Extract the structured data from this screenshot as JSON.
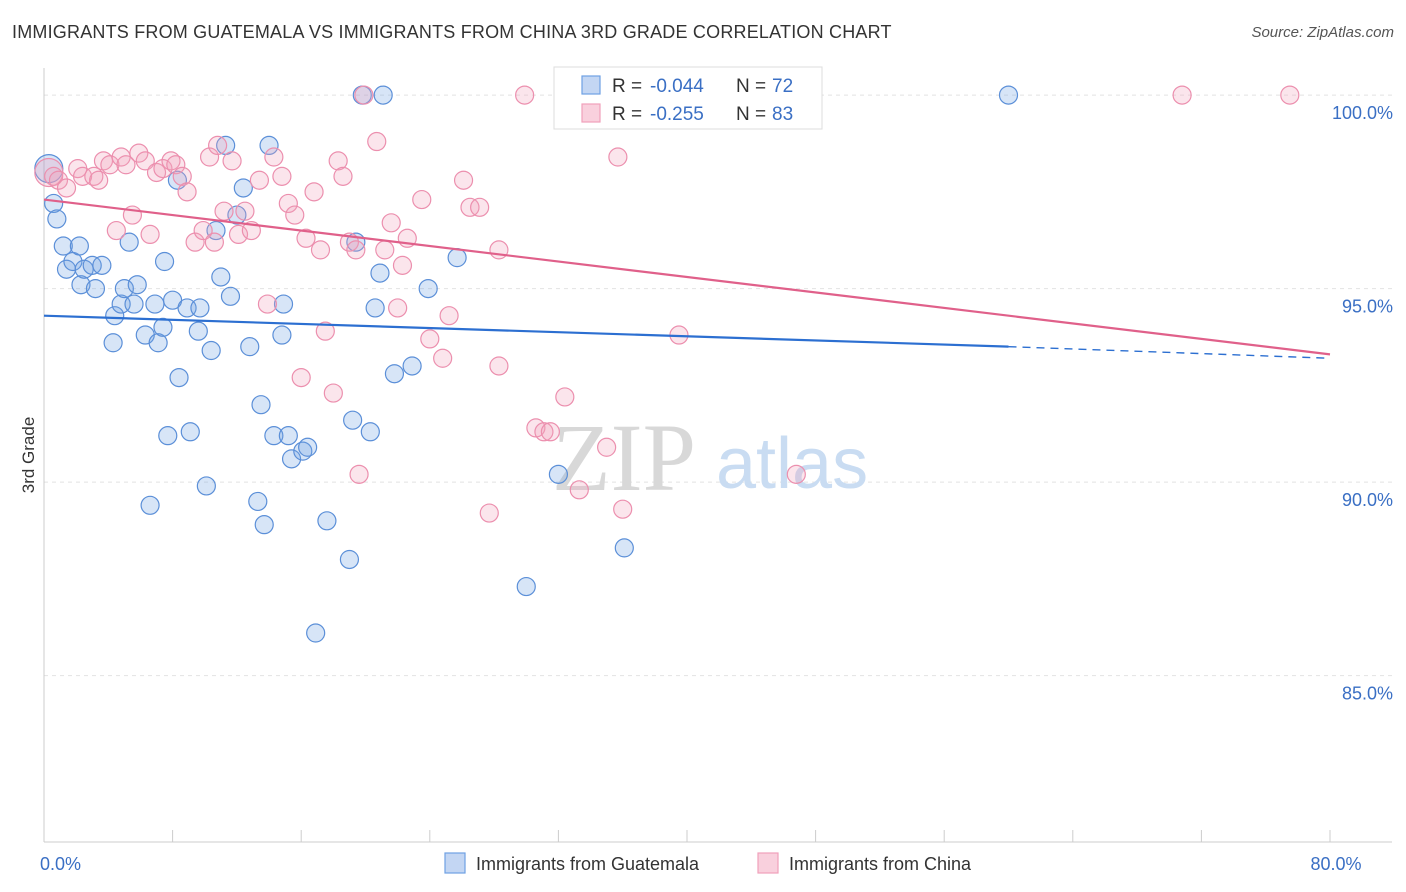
{
  "title": "IMMIGRANTS FROM GUATEMALA VS IMMIGRANTS FROM CHINA 3RD GRADE CORRELATION CHART",
  "source": "Source: ZipAtlas.com",
  "watermark": {
    "zip": "ZIP",
    "atlas": "atlas"
  },
  "colors": {
    "guatemala": "#6fa0e3",
    "china": "#f0a0ba",
    "guatemala_line": "#2c6fd1",
    "china_line": "#e0608a"
  },
  "chart_data": {
    "type": "scatter",
    "ylabel": "3rd Grade",
    "xlim": [
      0,
      80
    ],
    "ylim": [
      80.7,
      100.7
    ],
    "x_tick_labels": [
      {
        "value": 0,
        "label": "0.0%"
      },
      {
        "value": 80,
        "label": "80.0%"
      }
    ],
    "y_tick_labels": [
      {
        "value": 100,
        "label": "100.0%"
      },
      {
        "value": 95,
        "label": "95.0%"
      },
      {
        "value": 90,
        "label": "90.0%"
      },
      {
        "value": 85,
        "label": "85.0%"
      }
    ],
    "legend": {
      "placement": "bottom",
      "entries": [
        {
          "name": "Immigrants from Guatemala",
          "color": "#6fa0e3"
        },
        {
          "name": "Immigrants from China",
          "color": "#f0a0ba"
        }
      ]
    },
    "stats": [
      {
        "r_label": "R =",
        "r": "-0.044",
        "n_label": "N =",
        "n": "72"
      },
      {
        "r_label": "R =",
        "r": "-0.255",
        "n_label": "N =",
        "n": "83"
      }
    ],
    "series": [
      {
        "name": "Immigrants from Guatemala",
        "trend": {
          "x0": 0,
          "y0": 94.3,
          "x1": 60,
          "y1": 93.5,
          "dash_to_x": 80,
          "dash_to_y": 93.2
        },
        "points": [
          [
            0.3,
            98.1
          ],
          [
            0.6,
            97.2
          ],
          [
            0.8,
            96.8
          ],
          [
            1.2,
            96.1
          ],
          [
            1.4,
            95.5
          ],
          [
            1.8,
            95.7
          ],
          [
            2.3,
            95.1
          ],
          [
            2.5,
            95.5
          ],
          [
            3.0,
            95.6
          ],
          [
            3.2,
            95.0
          ],
          [
            3.6,
            95.6
          ],
          [
            4.3,
            93.6
          ],
          [
            4.4,
            94.3
          ],
          [
            4.8,
            94.6
          ],
          [
            5.0,
            95.0
          ],
          [
            5.3,
            96.2
          ],
          [
            5.6,
            94.6
          ],
          [
            5.8,
            95.1
          ],
          [
            6.3,
            93.8
          ],
          [
            6.6,
            89.4
          ],
          [
            6.9,
            94.6
          ],
          [
            7.1,
            93.6
          ],
          [
            7.4,
            94.0
          ],
          [
            7.7,
            91.2
          ],
          [
            8.0,
            94.7
          ],
          [
            8.3,
            97.8
          ],
          [
            8.4,
            92.7
          ],
          [
            8.9,
            94.5
          ],
          [
            9.1,
            91.3
          ],
          [
            9.6,
            93.9
          ],
          [
            9.7,
            94.5
          ],
          [
            10.1,
            89.9
          ],
          [
            10.4,
            93.4
          ],
          [
            10.7,
            96.5
          ],
          [
            11.0,
            95.3
          ],
          [
            11.3,
            98.7
          ],
          [
            11.6,
            94.8
          ],
          [
            12.0,
            96.9
          ],
          [
            12.8,
            93.5
          ],
          [
            13.3,
            89.5
          ],
          [
            13.5,
            92.0
          ],
          [
            13.7,
            88.9
          ],
          [
            14.0,
            98.7
          ],
          [
            14.3,
            91.2
          ],
          [
            14.8,
            93.8
          ],
          [
            14.9,
            94.6
          ],
          [
            15.2,
            91.2
          ],
          [
            15.4,
            90.6
          ],
          [
            16.1,
            90.8
          ],
          [
            16.4,
            90.9
          ],
          [
            16.9,
            86.1
          ],
          [
            17.6,
            89.0
          ],
          [
            19.0,
            88.0
          ],
          [
            19.4,
            96.2
          ],
          [
            19.8,
            100.0
          ],
          [
            19.2,
            91.6
          ],
          [
            20.3,
            91.3
          ],
          [
            20.9,
            95.4
          ],
          [
            21.1,
            100.0
          ],
          [
            21.8,
            92.8
          ],
          [
            22.9,
            93.0
          ],
          [
            23.9,
            95.0
          ],
          [
            25.7,
            95.8
          ],
          [
            30.0,
            87.3
          ],
          [
            32.0,
            90.2
          ],
          [
            33.1,
            100.0
          ],
          [
            36.1,
            88.3
          ],
          [
            60.0,
            100.0
          ],
          [
            2.2,
            96.1
          ],
          [
            7.5,
            95.7
          ],
          [
            12.4,
            97.6
          ],
          [
            20.6,
            94.5
          ]
        ]
      },
      {
        "name": "Immigrants from China",
        "trend": {
          "x0": 0,
          "y0": 97.3,
          "x1": 80,
          "y1": 93.3
        },
        "points": [
          [
            0.3,
            98.0
          ],
          [
            0.6,
            97.9
          ],
          [
            0.9,
            97.8
          ],
          [
            1.4,
            97.6
          ],
          [
            2.1,
            98.1
          ],
          [
            2.4,
            97.9
          ],
          [
            3.1,
            97.9
          ],
          [
            3.4,
            97.8
          ],
          [
            3.7,
            98.3
          ],
          [
            4.1,
            98.2
          ],
          [
            4.5,
            96.5
          ],
          [
            4.8,
            98.4
          ],
          [
            5.1,
            98.2
          ],
          [
            5.5,
            96.9
          ],
          [
            5.9,
            98.5
          ],
          [
            6.3,
            98.3
          ],
          [
            6.6,
            96.4
          ],
          [
            7.0,
            98.0
          ],
          [
            7.4,
            98.1
          ],
          [
            7.9,
            98.3
          ],
          [
            8.2,
            98.2
          ],
          [
            8.6,
            97.9
          ],
          [
            8.9,
            97.5
          ],
          [
            9.4,
            96.2
          ],
          [
            9.9,
            96.5
          ],
          [
            10.3,
            98.4
          ],
          [
            10.6,
            96.2
          ],
          [
            10.8,
            98.7
          ],
          [
            11.2,
            97.0
          ],
          [
            11.7,
            98.3
          ],
          [
            12.1,
            96.4
          ],
          [
            12.5,
            97.0
          ],
          [
            12.9,
            96.5
          ],
          [
            13.4,
            97.8
          ],
          [
            13.9,
            94.6
          ],
          [
            14.3,
            98.4
          ],
          [
            14.8,
            97.9
          ],
          [
            15.2,
            97.2
          ],
          [
            15.6,
            96.9
          ],
          [
            16.0,
            92.7
          ],
          [
            16.3,
            96.3
          ],
          [
            16.8,
            97.5
          ],
          [
            17.2,
            96.0
          ],
          [
            17.5,
            93.9
          ],
          [
            18.0,
            92.3
          ],
          [
            18.3,
            98.3
          ],
          [
            18.6,
            97.9
          ],
          [
            19.0,
            96.2
          ],
          [
            19.4,
            96.0
          ],
          [
            19.6,
            90.2
          ],
          [
            19.9,
            100.0
          ],
          [
            20.7,
            98.8
          ],
          [
            21.2,
            96.0
          ],
          [
            21.6,
            96.7
          ],
          [
            22.0,
            94.5
          ],
          [
            22.3,
            95.6
          ],
          [
            22.6,
            96.3
          ],
          [
            23.5,
            97.3
          ],
          [
            24.0,
            93.7
          ],
          [
            24.8,
            93.2
          ],
          [
            25.2,
            94.3
          ],
          [
            26.1,
            97.8
          ],
          [
            26.5,
            97.1
          ],
          [
            27.1,
            97.1
          ],
          [
            27.7,
            89.2
          ],
          [
            28.3,
            96.0
          ],
          [
            28.3,
            93.0
          ],
          [
            29.9,
            100.0
          ],
          [
            30.6,
            91.4
          ],
          [
            31.1,
            91.3
          ],
          [
            31.5,
            91.3
          ],
          [
            32.4,
            92.2
          ],
          [
            33.0,
            100.0
          ],
          [
            33.3,
            89.8
          ],
          [
            35.0,
            90.9
          ],
          [
            35.7,
            98.4
          ],
          [
            36.0,
            89.3
          ],
          [
            39.5,
            93.8
          ],
          [
            40.8,
            100.0
          ],
          [
            46.8,
            90.2
          ],
          [
            70.8,
            100.0
          ],
          [
            77.5,
            100.0
          ],
          [
            36.2,
            100.0
          ]
        ]
      }
    ]
  }
}
